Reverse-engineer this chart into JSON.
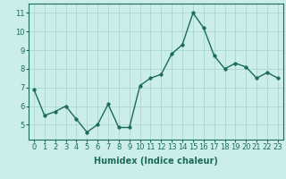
{
  "x": [
    0,
    1,
    2,
    3,
    4,
    5,
    6,
    7,
    8,
    9,
    10,
    11,
    12,
    13,
    14,
    15,
    16,
    17,
    18,
    19,
    20,
    21,
    22,
    23
  ],
  "y": [
    6.9,
    5.5,
    5.7,
    6.0,
    5.3,
    4.6,
    5.0,
    6.1,
    4.85,
    4.85,
    7.1,
    7.5,
    7.7,
    8.8,
    9.3,
    11.0,
    10.2,
    8.7,
    8.0,
    8.3,
    8.1,
    7.5,
    7.8,
    7.5
  ],
  "line_color": "#1a6b5a",
  "marker": "o",
  "markersize": 2.5,
  "linewidth": 1.0,
  "bg_color": "#cceee8",
  "grid_color": "#a8d8d0",
  "xlabel": "Humidex (Indice chaleur)",
  "xlabel_fontsize": 7,
  "tick_fontsize": 6,
  "ylabel_ticks": [
    5,
    6,
    7,
    8,
    9,
    10,
    11
  ],
  "ylim": [
    4.2,
    11.5
  ],
  "xlim": [
    -0.5,
    23.5
  ],
  "spine_color": "#1a6b5a"
}
